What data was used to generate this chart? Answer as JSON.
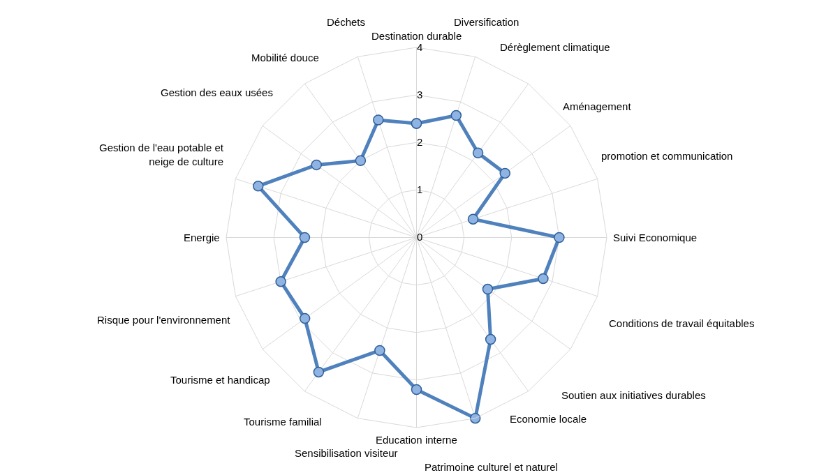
{
  "chart_data": {
    "type": "radar",
    "categories": [
      "Destination durable",
      "Diversification",
      "Dérèglement climatique",
      "Aménagement",
      "promotion et communication",
      "Suivi Economique",
      "Conditions de travail équitables",
      "Soutien aux initiatives durables",
      "Economie locale",
      "Patrimoine culturel et naturel",
      "Education interne",
      "Sensibilisation visiteur",
      "Tourisme familial",
      "Tourisme et handicap",
      "Risque pour l'environnement",
      "Energie",
      "Gestion de l'eau potable et\nneige de culture",
      "Gestion des eaux usées",
      "Mobilité douce",
      "Déchets"
    ],
    "series": [
      {
        "color": "#4f81bd",
        "values": [
          2.4,
          2.7,
          2.2,
          2.3,
          1.25,
          3.0,
          2.8,
          1.85,
          2.65,
          4.0,
          3.2,
          2.5,
          3.5,
          2.9,
          3.0,
          2.35,
          3.5,
          2.6,
          2.0,
          2.6
        ]
      }
    ],
    "ylim": [
      0,
      4
    ],
    "yticks": [
      0,
      1,
      2,
      3,
      4
    ],
    "grid": true,
    "marker": "circle",
    "line_style": "solid"
  }
}
